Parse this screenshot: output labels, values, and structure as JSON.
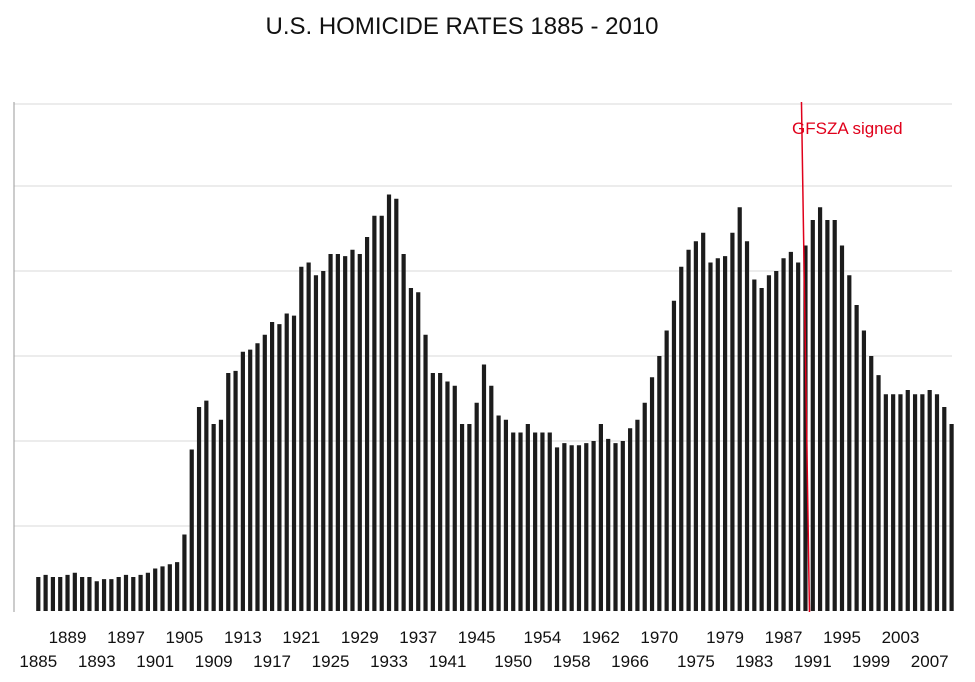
{
  "chart_data": {
    "type": "bar",
    "title": "U.S. HOMICIDE RATES 1885 - 2010",
    "xlabel": "",
    "ylabel": "",
    "grid": true,
    "ylim": [
      0,
      12
    ],
    "gridlines": [
      2,
      4,
      6,
      8,
      10
    ],
    "x": [
      1885,
      1886,
      1887,
      1888,
      1889,
      1890,
      1891,
      1892,
      1893,
      1894,
      1895,
      1896,
      1897,
      1898,
      1899,
      1900,
      1901,
      1902,
      1903,
      1904,
      1905,
      1906,
      1907,
      1908,
      1909,
      1910,
      1911,
      1912,
      1913,
      1914,
      1915,
      1916,
      1917,
      1918,
      1919,
      1920,
      1921,
      1922,
      1923,
      1924,
      1925,
      1926,
      1927,
      1928,
      1929,
      1930,
      1931,
      1932,
      1933,
      1934,
      1935,
      1936,
      1937,
      1938,
      1939,
      1940,
      1941,
      1942,
      1943,
      1944,
      1945,
      1946,
      1947,
      1948,
      1949,
      1950,
      1951,
      1952,
      1953,
      1954,
      1955,
      1956,
      1957,
      1958,
      1959,
      1960,
      1961,
      1962,
      1963,
      1964,
      1965,
      1966,
      1967,
      1968,
      1969,
      1970,
      1971,
      1972,
      1973,
      1974,
      1975,
      1976,
      1977,
      1978,
      1979,
      1980,
      1981,
      1982,
      1983,
      1984,
      1985,
      1986,
      1987,
      1988,
      1989,
      1990,
      1991,
      1992,
      1993,
      1994,
      1995,
      1996,
      1997,
      1998,
      1999,
      2000,
      2001,
      2002,
      2003,
      2004,
      2005,
      2006,
      2007,
      2008,
      2009,
      2010
    ],
    "values": [
      0.8,
      0.85,
      0.8,
      0.8,
      0.85,
      0.9,
      0.8,
      0.8,
      0.7,
      0.75,
      0.75,
      0.8,
      0.85,
      0.8,
      0.85,
      0.9,
      1.0,
      1.05,
      1.1,
      1.15,
      1.8,
      3.8,
      4.8,
      4.95,
      4.4,
      4.5,
      5.6,
      5.65,
      6.1,
      6.15,
      6.3,
      6.5,
      6.8,
      6.75,
      7.0,
      6.95,
      8.1,
      8.2,
      7.9,
      8.0,
      8.4,
      8.4,
      8.35,
      8.5,
      8.4,
      8.8,
      9.3,
      9.3,
      9.8,
      9.7,
      8.4,
      7.6,
      7.5,
      6.5,
      5.6,
      5.6,
      5.4,
      5.3,
      4.4,
      4.4,
      4.9,
      5.8,
      5.3,
      4.6,
      4.5,
      4.2,
      4.2,
      4.4,
      4.2,
      4.2,
      4.2,
      3.85,
      3.95,
      3.9,
      3.9,
      3.95,
      4.0,
      4.4,
      4.05,
      3.95,
      4.0,
      4.3,
      4.5,
      4.9,
      5.5,
      6.0,
      6.6,
      7.3,
      8.1,
      8.5,
      8.7,
      8.9,
      8.2,
      8.3,
      8.35,
      8.9,
      9.5,
      8.7,
      7.8,
      7.6,
      7.9,
      8.0,
      8.3,
      8.45,
      8.2,
      8.6,
      9.2,
      9.5,
      9.2,
      9.2,
      8.6,
      7.9,
      7.2,
      6.6,
      6.0,
      5.55,
      5.1,
      5.1,
      5.1,
      5.2,
      5.1,
      5.1,
      5.2,
      5.1,
      4.8,
      4.4
    ],
    "tick_labels_top": [
      "1889",
      "1897",
      "1905",
      "1913",
      "1921",
      "1929",
      "1937",
      "1945",
      "1954",
      "1962",
      "1970",
      "1979",
      "1987",
      "1995",
      "2003"
    ],
    "tick_labels_bottom": [
      "1885",
      "1893",
      "1901",
      "1909",
      "1917",
      "1925",
      "1933",
      "1941",
      "1950",
      "1958",
      "1966",
      "1975",
      "1983",
      "1991",
      "1999",
      "2007"
    ],
    "annotation": {
      "label": "GFSZA signed",
      "year": 1990,
      "color": "#e0001b"
    }
  }
}
